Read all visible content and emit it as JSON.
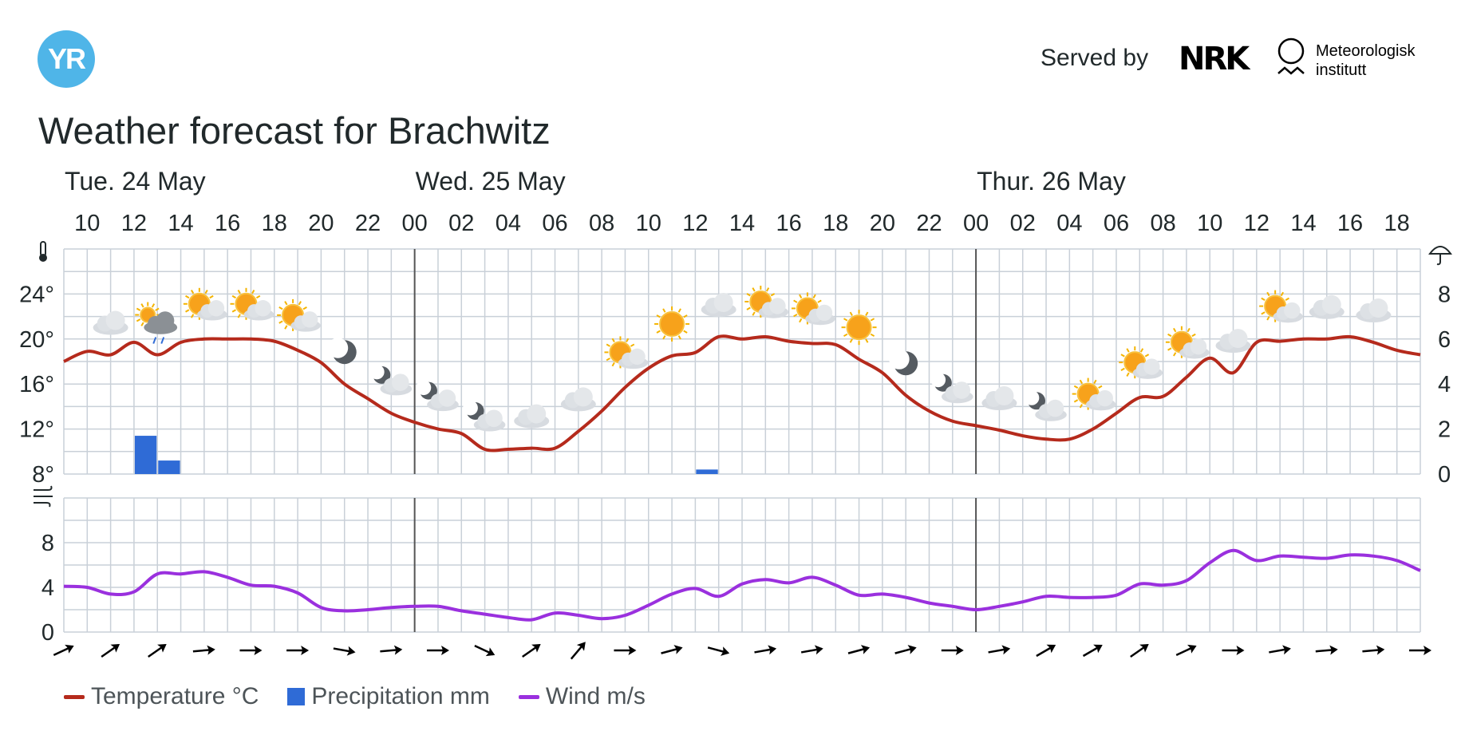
{
  "header": {
    "logo_text": "YR",
    "served_by": "Served by",
    "nrk_text": "NRK",
    "met_line1": "Meteorologisk",
    "met_line2": "institutt",
    "title": "Weather forecast for Brachwitz"
  },
  "legend": {
    "temperature": "Temperature °C",
    "precipitation": "Precipitation mm",
    "wind": "Wind m/s"
  },
  "colors": {
    "temperature": "#b52a1c",
    "precipitation": "#2f6bd6",
    "wind": "#9a30de",
    "grid": "#c9d0d8",
    "day_divider": "#555555",
    "logo": "#4fb5e8"
  },
  "chart_data": {
    "type": "line",
    "days": [
      {
        "label": "Tue. 24 May",
        "start_hour_index": 0
      },
      {
        "label": "Wed. 25 May",
        "start_hour_index": 15
      },
      {
        "label": "Thur. 26 May",
        "start_hour_index": 39
      }
    ],
    "hour_labels": [
      "10",
      "12",
      "14",
      "16",
      "18",
      "20",
      "22",
      "00",
      "02",
      "04",
      "06",
      "08",
      "10",
      "12",
      "14",
      "16",
      "18",
      "20",
      "22",
      "00",
      "02",
      "04",
      "06",
      "08",
      "10",
      "12",
      "14",
      "16",
      "18"
    ],
    "temperature_axis": {
      "ticks": [
        "24°",
        "20°",
        "16°",
        "12°",
        "8°"
      ],
      "values": [
        24,
        20,
        16,
        12,
        8
      ],
      "ylim": [
        8,
        28
      ]
    },
    "precipitation_axis": {
      "ticks": [
        "8",
        "6",
        "4",
        "2",
        "0"
      ],
      "values": [
        8,
        6,
        4,
        2,
        0
      ],
      "ylim": [
        0,
        10
      ]
    },
    "wind_axis": {
      "ticks": [
        "8",
        "4",
        "0"
      ],
      "values": [
        8,
        4,
        0
      ],
      "ylim": [
        0,
        12
      ]
    },
    "series": [
      {
        "name": "Temperature °C",
        "x": [
          9,
          10,
          11,
          12,
          13,
          14,
          15,
          16,
          17,
          18,
          19,
          20,
          21,
          22,
          23,
          0,
          1,
          2,
          3,
          4,
          5,
          6,
          7,
          8,
          9,
          10,
          11,
          12,
          13,
          14,
          15,
          16,
          17,
          18,
          19,
          20,
          21,
          22,
          23,
          0,
          1,
          2,
          3,
          4,
          5,
          6,
          7,
          8,
          9,
          10,
          11,
          12,
          13,
          14,
          15,
          16,
          17,
          18,
          19
        ],
        "values": [
          18.0,
          18.9,
          18.6,
          19.7,
          18.6,
          19.7,
          20.0,
          20.0,
          20.0,
          19.8,
          19.0,
          17.9,
          16.0,
          14.7,
          13.4,
          12.6,
          12.0,
          11.6,
          10.2,
          10.2,
          10.3,
          10.3,
          11.8,
          13.6,
          15.7,
          17.4,
          18.5,
          18.8,
          20.2,
          20.0,
          20.2,
          19.8,
          19.6,
          19.5,
          18.2,
          17.0,
          15.0,
          13.6,
          12.7,
          12.3,
          11.9,
          11.4,
          11.1,
          11.1,
          12.0,
          13.4,
          14.8,
          14.9,
          16.6,
          18.3,
          17.0,
          19.7,
          19.8,
          20.0,
          20.0,
          20.2,
          19.7,
          19.0,
          18.6
        ]
      },
      {
        "name": "Precipitation mm",
        "x": [
          12,
          13,
          12
        ],
        "values": [
          1.7,
          0.6,
          0.2
        ],
        "day_index": [
          0,
          0,
          1
        ]
      },
      {
        "name": "Wind m/s",
        "x": [
          9,
          10,
          11,
          12,
          13,
          14,
          15,
          16,
          17,
          18,
          19,
          20,
          21,
          22,
          23,
          0,
          1,
          2,
          3,
          4,
          5,
          6,
          7,
          8,
          9,
          10,
          11,
          12,
          13,
          14,
          15,
          16,
          17,
          18,
          19,
          20,
          21,
          22,
          23,
          0,
          1,
          2,
          3,
          4,
          5,
          6,
          7,
          8,
          9,
          10,
          11,
          12,
          13,
          14,
          15,
          16,
          17,
          18,
          19
        ],
        "values": [
          4.1,
          4.0,
          3.4,
          3.6,
          5.2,
          5.2,
          5.4,
          4.9,
          4.2,
          4.1,
          3.5,
          2.2,
          1.9,
          2.0,
          2.2,
          2.3,
          2.3,
          1.9,
          1.6,
          1.3,
          1.1,
          1.7,
          1.5,
          1.2,
          1.5,
          2.4,
          3.4,
          3.9,
          3.2,
          4.3,
          4.7,
          4.4,
          4.9,
          4.2,
          3.3,
          3.4,
          3.1,
          2.6,
          2.3,
          2.0,
          2.3,
          2.7,
          3.2,
          3.1,
          3.1,
          3.3,
          4.3,
          4.2,
          4.6,
          6.2,
          7.3,
          6.4,
          6.8,
          6.7,
          6.6,
          6.9,
          6.8,
          6.4,
          5.5
        ]
      }
    ],
    "weather_icons": [
      "cloudy",
      "partly-cloudy-rain",
      "partly-sunny",
      "partly-sunny",
      "partly-sunny",
      "moon",
      "partly-cloudy-night",
      "partly-cloudy-night",
      "partly-cloudy-night",
      "cloudy",
      "cloudy",
      "partly-sunny",
      "sun",
      "cloudy",
      "partly-sunny",
      "partly-sunny",
      "sun",
      "moon",
      "partly-cloudy-night",
      "cloudy",
      "partly-cloudy-night",
      "partly-sunny",
      "partly-sunny",
      "partly-sunny",
      "cloudy",
      "partly-sunny",
      "cloudy",
      "cloudy"
    ],
    "wind_arrow_directions_deg": [
      -25,
      -35,
      -35,
      -5,
      0,
      0,
      10,
      -5,
      0,
      25,
      -35,
      -50,
      0,
      -15,
      15,
      -10,
      -10,
      -15,
      -15,
      0,
      -10,
      -30,
      -30,
      -35,
      -25,
      0,
      -10,
      -5,
      -5,
      0
    ]
  }
}
